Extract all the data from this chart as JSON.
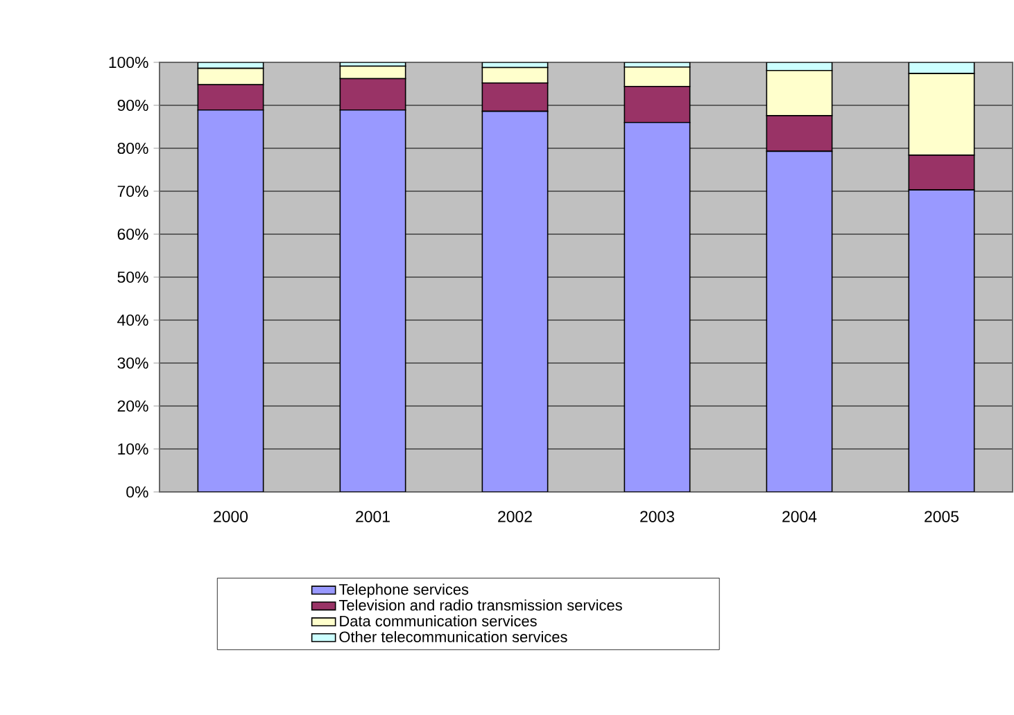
{
  "chart_data": {
    "type": "bar",
    "stacked": true,
    "categories": [
      "2000",
      "2001",
      "2002",
      "2003",
      "2004",
      "2005"
    ],
    "series": [
      {
        "name": "Telephone services",
        "color": "#9999ff",
        "values": [
          88.9,
          88.9,
          88.6,
          86.0,
          79.3,
          70.3
        ]
      },
      {
        "name": "Television and radio transmission services",
        "color": "#993366",
        "values": [
          5.9,
          7.3,
          6.6,
          8.4,
          8.3,
          8.1
        ]
      },
      {
        "name": "Data communication services",
        "color": "#ffffcc",
        "values": [
          3.8,
          2.9,
          3.6,
          4.5,
          10.5,
          19.0
        ]
      },
      {
        "name": "Other telecommunication services",
        "color": "#ccffff",
        "values": [
          1.4,
          0.9,
          1.2,
          1.1,
          1.9,
          2.6
        ]
      }
    ],
    "ylim": [
      0,
      100
    ],
    "yticks": [
      {
        "value": 0,
        "label": "0%"
      },
      {
        "value": 10,
        "label": "10%"
      },
      {
        "value": 20,
        "label": "20%"
      },
      {
        "value": 30,
        "label": "30%"
      },
      {
        "value": 40,
        "label": "40%"
      },
      {
        "value": 50,
        "label": "50%"
      },
      {
        "value": 60,
        "label": "60%"
      },
      {
        "value": 70,
        "label": "70%"
      },
      {
        "value": 80,
        "label": "80%"
      },
      {
        "value": 90,
        "label": "90%"
      },
      {
        "value": 100,
        "label": "100%"
      }
    ],
    "grid": "y",
    "legend": "bottom"
  }
}
